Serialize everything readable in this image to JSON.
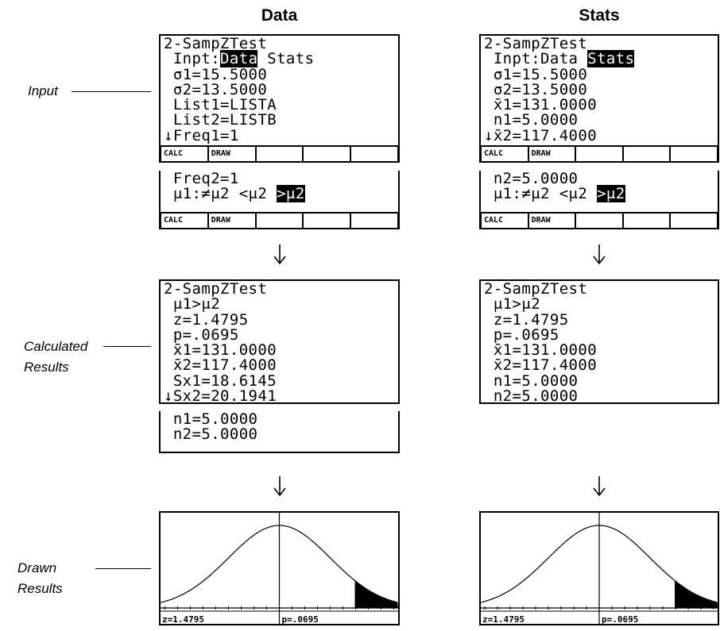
{
  "row_labels": [
    "Input",
    "Calculated Results",
    "Drawn Results"
  ],
  "columns": [
    {
      "header": "Data",
      "input": [
        {
          "lines": [
            "2-SampZTest",
            {
              "segments": [
                {
                  "text": " Inpt:"
                },
                {
                  "text": "Data",
                  "inverse": true
                },
                {
                  "text": " Stats"
                }
              ]
            },
            " σ1=15.5000",
            " σ2=13.5000",
            " List1=LISTA",
            " List2=LISTB",
            "↓Freq1=1"
          ],
          "menu": [
            "CALC",
            "DRAW"
          ]
        },
        {
          "lines": [
            " Freq2=1",
            {
              "segments": [
                {
                  "text": " μ1:≠μ2 <μ2 "
                },
                {
                  "text": ">μ2",
                  "inverse": true
                }
              ]
            }
          ],
          "menu": [
            "CALC",
            "DRAW"
          ]
        }
      ],
      "results": [
        {
          "lines": [
            "2-SampZTest",
            " μ1>μ2",
            " z=1.4795",
            " p=.0695",
            " x̄1=131.0000",
            " x̄2=117.4000",
            " Sx1=18.6145",
            "↓Sx2=20.1941"
          ]
        },
        {
          "lines": [
            " n1=5.0000",
            " n2=5.0000"
          ]
        }
      ],
      "graph": {
        "z": "z=1.4795",
        "p": "p=.0695"
      }
    },
    {
      "header": "Stats",
      "input": [
        {
          "lines": [
            "2-SampZTest",
            {
              "segments": [
                {
                  "text": " Inpt:Data "
                },
                {
                  "text": "Stats",
                  "inverse": true
                }
              ]
            },
            " σ1=15.5000",
            " σ2=13.5000",
            " x̄1=131.0000",
            " n1=5.0000",
            "↓x̄2=117.4000"
          ],
          "menu": [
            "CALC",
            "DRAW"
          ]
        },
        {
          "lines": [
            " n2=5.0000",
            {
              "segments": [
                {
                  "text": " μ1:≠μ2 <μ2 "
                },
                {
                  "text": ">μ2",
                  "inverse": true
                }
              ]
            }
          ],
          "menu": [
            "CALC",
            "DRAW"
          ]
        }
      ],
      "results": [
        {
          "lines": [
            "2-SampZTest",
            " μ1>μ2",
            " z=1.4795",
            " p=.0695",
            " x̄1=131.0000",
            " x̄2=117.4000",
            " n1=5.0000",
            " n2=5.0000"
          ]
        }
      ],
      "graph": {
        "z": "z=1.4795",
        "p": "p=.0695"
      }
    }
  ]
}
